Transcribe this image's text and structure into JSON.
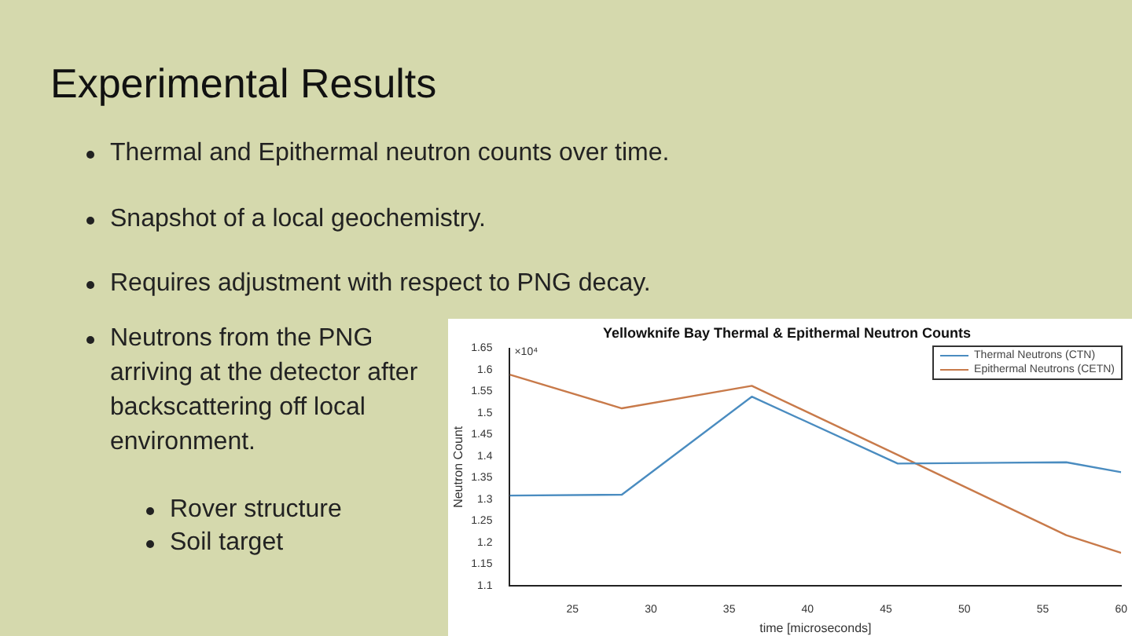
{
  "chart_data": {
    "type": "line",
    "title": "Experimental Results",
    "subtitle": "Yellowknife Bay Thermal & Epithermal Neutron Counts",
    "xlabel": "time [microseconds]",
    "ylabel": "Neutron Count",
    "annotations": [
      "Thermal and Epithermal neutron counts over time.",
      "Snapshot of a local geochemistry.",
      "Requires adjustment with respect to PNG decay.",
      "Neutrons from the PNG arriving at the detector after backscattering off local environment.",
      "Rover structure",
      "Soil target",
      "×10⁴"
    ],
    "x": [
      21,
      28.15,
      36.44,
      45.75,
      56.5,
      60
    ],
    "series": [
      {
        "name": "Thermal Neutrons (CTN)",
        "color": "#4a8cc0",
        "values": [
          1.309,
          1.311,
          1.538,
          1.383,
          1.386,
          1.363
        ]
      },
      {
        "name": "Epithermal Neutrons (CETN)",
        "color": "#c87a4a",
        "values": [
          1.589,
          1.511,
          1.563,
          1.403,
          1.217,
          1.176
        ]
      }
    ],
    "xlim": [
      21,
      60
    ],
    "xticks": [
      25,
      30,
      35,
      40,
      45,
      50,
      55,
      60
    ],
    "ylim": [
      1.1,
      1.65
    ],
    "yticks": [
      1.1,
      1.15,
      1.2,
      1.25,
      1.3,
      1.35,
      1.4,
      1.45,
      1.5,
      1.55,
      1.6,
      1.65
    ],
    "grid": false,
    "legend": "top right",
    "marker": "none",
    "line_style": "solid"
  }
}
